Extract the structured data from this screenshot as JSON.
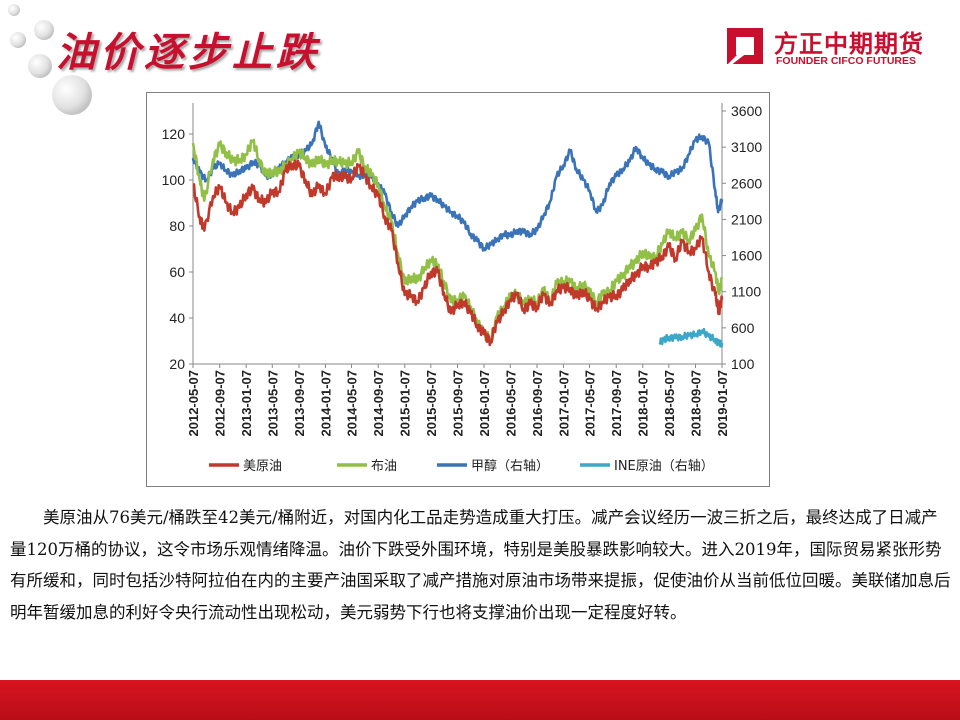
{
  "slide": {
    "title": "油价逐步止跌",
    "paragraph": "美原油从76美元/桶跌至42美元/桶附近，对国内化工品走势造成重大打压。减产会议经历一波三折之后，最终达成了日减产量120万桶的协议，这令市场乐观情绪降温。油价下跌受外围环境，特别是美股暴跌影响较大。进入2019年，国际贸易紧张形势有所缓和，同时包括沙特阿拉伯在内的主要产油国采取了减产措施对原油市场带来提振，促使油价从当前低位回暖。美联储加息后明年暂缓加息的利好令央行流动性出现松动，美元弱势下行也将支撑油价出现一定程度好转。"
  },
  "logo": {
    "cn": "方正中期期货",
    "en": "FOUNDER CIFCO FUTURES",
    "color": "#c8102e"
  },
  "colors": {
    "brand_red": "#c8102e",
    "wti": "#c0392b",
    "brent": "#92c046",
    "methanol": "#3a73b8",
    "ine": "#3ba7c9"
  },
  "chart_data": {
    "type": "line",
    "title": "",
    "left_axis": {
      "range": [
        20,
        130
      ],
      "ticks": [
        20,
        40,
        60,
        80,
        100,
        120
      ]
    },
    "right_axis": {
      "range": [
        100,
        3600
      ],
      "ticks": [
        100,
        600,
        1100,
        1600,
        2100,
        2600,
        3100,
        3600
      ]
    },
    "x_ticks": [
      "2012-05-07",
      "2012-09-07",
      "2013-01-07",
      "2013-05-07",
      "2013-09-07",
      "2014-01-07",
      "2014-05-07",
      "2014-09-07",
      "2015-01-07",
      "2015-05-07",
      "2015-09-07",
      "2016-01-07",
      "2016-05-07",
      "2016-09-07",
      "2017-01-07",
      "2017-05-07",
      "2017-09-07",
      "2018-01-07",
      "2018-05-07",
      "2018-09-07",
      "2019-01-07"
    ],
    "grid": false,
    "legend_position": "bottom",
    "series": [
      {
        "name": "美原油",
        "axis": "left",
        "color": "#c0392b",
        "points": [
          [
            "2012-05-07",
            98
          ],
          [
            "2012-06-07",
            84
          ],
          [
            "2012-06-28",
            78
          ],
          [
            "2012-08-07",
            93
          ],
          [
            "2012-09-07",
            97
          ],
          [
            "2012-10-07",
            90
          ],
          [
            "2012-11-07",
            86
          ],
          [
            "2012-12-07",
            88
          ],
          [
            "2013-01-07",
            94
          ],
          [
            "2013-02-07",
            96
          ],
          [
            "2013-03-07",
            92
          ],
          [
            "2013-04-07",
            90
          ],
          [
            "2013-05-07",
            95
          ],
          [
            "2013-06-07",
            95
          ],
          [
            "2013-07-07",
            104
          ],
          [
            "2013-08-07",
            107
          ],
          [
            "2013-09-07",
            106
          ],
          [
            "2013-10-07",
            100
          ],
          [
            "2013-11-07",
            93
          ],
          [
            "2013-12-07",
            98
          ],
          [
            "2014-01-07",
            94
          ],
          [
            "2014-02-07",
            101
          ],
          [
            "2014-03-07",
            102
          ],
          [
            "2014-04-07",
            101
          ],
          [
            "2014-05-07",
            101
          ],
          [
            "2014-06-07",
            106
          ],
          [
            "2014-07-07",
            102
          ],
          [
            "2014-08-07",
            97
          ],
          [
            "2014-09-07",
            93
          ],
          [
            "2014-10-07",
            84
          ],
          [
            "2014-11-07",
            78
          ],
          [
            "2014-12-07",
            64
          ],
          [
            "2015-01-07",
            50
          ],
          [
            "2015-02-07",
            50
          ],
          [
            "2015-03-07",
            47
          ],
          [
            "2015-04-07",
            53
          ],
          [
            "2015-05-07",
            60
          ],
          [
            "2015-06-07",
            60
          ],
          [
            "2015-07-07",
            51
          ],
          [
            "2015-08-07",
            42
          ],
          [
            "2015-09-07",
            46
          ],
          [
            "2015-10-07",
            47
          ],
          [
            "2015-11-07",
            42
          ],
          [
            "2015-12-07",
            37
          ],
          [
            "2016-01-07",
            33
          ],
          [
            "2016-02-07",
            30
          ],
          [
            "2016-03-07",
            38
          ],
          [
            "2016-04-07",
            43
          ],
          [
            "2016-05-07",
            48
          ],
          [
            "2016-06-07",
            50
          ],
          [
            "2016-07-07",
            44
          ],
          [
            "2016-08-07",
            46
          ],
          [
            "2016-09-07",
            45
          ],
          [
            "2016-10-07",
            50
          ],
          [
            "2016-11-07",
            46
          ],
          [
            "2016-12-07",
            52
          ],
          [
            "2017-01-07",
            53
          ],
          [
            "2017-02-07",
            53
          ],
          [
            "2017-03-07",
            49
          ],
          [
            "2017-04-07",
            52
          ],
          [
            "2017-05-07",
            48
          ],
          [
            "2017-06-07",
            44
          ],
          [
            "2017-07-07",
            47
          ],
          [
            "2017-08-07",
            49
          ],
          [
            "2017-09-07",
            50
          ],
          [
            "2017-10-07",
            52
          ],
          [
            "2017-11-07",
            57
          ],
          [
            "2017-12-07",
            58
          ],
          [
            "2018-01-07",
            63
          ],
          [
            "2018-02-07",
            62
          ],
          [
            "2018-03-07",
            64
          ],
          [
            "2018-04-07",
            67
          ],
          [
            "2018-05-07",
            71
          ],
          [
            "2018-06-07",
            66
          ],
          [
            "2018-07-07",
            73
          ],
          [
            "2018-08-07",
            69
          ],
          [
            "2018-09-07",
            70
          ],
          [
            "2018-10-07",
            75
          ],
          [
            "2018-11-07",
            60
          ],
          [
            "2018-12-07",
            50
          ],
          [
            "2018-12-24",
            43
          ],
          [
            "2019-01-07",
            48
          ]
        ]
      },
      {
        "name": "布油",
        "axis": "left",
        "color": "#92c046",
        "points": [
          [
            "2012-05-07",
            116
          ],
          [
            "2012-06-07",
            100
          ],
          [
            "2012-06-28",
            91
          ],
          [
            "2012-08-07",
            109
          ],
          [
            "2012-09-07",
            115
          ],
          [
            "2012-10-07",
            112
          ],
          [
            "2012-11-07",
            108
          ],
          [
            "2012-12-07",
            109
          ],
          [
            "2013-01-07",
            111
          ],
          [
            "2013-02-07",
            117
          ],
          [
            "2013-03-07",
            109
          ],
          [
            "2013-04-07",
            102
          ],
          [
            "2013-05-07",
            104
          ],
          [
            "2013-06-07",
            103
          ],
          [
            "2013-07-07",
            107
          ],
          [
            "2013-08-07",
            109
          ],
          [
            "2013-09-07",
            112
          ],
          [
            "2013-10-07",
            110
          ],
          [
            "2013-11-07",
            106
          ],
          [
            "2013-12-07",
            110
          ],
          [
            "2014-01-07",
            106
          ],
          [
            "2014-02-07",
            109
          ],
          [
            "2014-03-07",
            108
          ],
          [
            "2014-04-07",
            107
          ],
          [
            "2014-05-07",
            108
          ],
          [
            "2014-06-07",
            112
          ],
          [
            "2014-07-07",
            106
          ],
          [
            "2014-08-07",
            102
          ],
          [
            "2014-09-07",
            98
          ],
          [
            "2014-10-07",
            88
          ],
          [
            "2014-11-07",
            82
          ],
          [
            "2014-12-07",
            68
          ],
          [
            "2015-01-07",
            55
          ],
          [
            "2015-02-07",
            58
          ],
          [
            "2015-03-07",
            56
          ],
          [
            "2015-04-07",
            62
          ],
          [
            "2015-05-07",
            65
          ],
          [
            "2015-06-07",
            63
          ],
          [
            "2015-07-07",
            56
          ],
          [
            "2015-08-07",
            47
          ],
          [
            "2015-09-07",
            48
          ],
          [
            "2015-10-07",
            49
          ],
          [
            "2015-11-07",
            45
          ],
          [
            "2015-12-07",
            38
          ],
          [
            "2016-01-07",
            33
          ],
          [
            "2016-02-07",
            31
          ],
          [
            "2016-03-07",
            40
          ],
          [
            "2016-04-07",
            45
          ],
          [
            "2016-05-07",
            49
          ],
          [
            "2016-06-07",
            51
          ],
          [
            "2016-07-07",
            46
          ],
          [
            "2016-08-07",
            48
          ],
          [
            "2016-09-07",
            47
          ],
          [
            "2016-10-07",
            52
          ],
          [
            "2016-11-07",
            47
          ],
          [
            "2016-12-07",
            55
          ],
          [
            "2017-01-07",
            56
          ],
          [
            "2017-02-07",
            56
          ],
          [
            "2017-03-07",
            52
          ],
          [
            "2017-04-07",
            55
          ],
          [
            "2017-05-07",
            51
          ],
          [
            "2017-06-07",
            47
          ],
          [
            "2017-07-07",
            50
          ],
          [
            "2017-08-07",
            52
          ],
          [
            "2017-09-07",
            56
          ],
          [
            "2017-10-07",
            58
          ],
          [
            "2017-11-07",
            63
          ],
          [
            "2017-12-07",
            64
          ],
          [
            "2018-01-07",
            69
          ],
          [
            "2018-02-07",
            66
          ],
          [
            "2018-03-07",
            67
          ],
          [
            "2018-04-07",
            72
          ],
          [
            "2018-05-07",
            78
          ],
          [
            "2018-06-07",
            75
          ],
          [
            "2018-07-07",
            77
          ],
          [
            "2018-08-07",
            74
          ],
          [
            "2018-09-07",
            78
          ],
          [
            "2018-10-07",
            85
          ],
          [
            "2018-11-07",
            67
          ],
          [
            "2018-12-07",
            60
          ],
          [
            "2018-12-24",
            51
          ],
          [
            "2019-01-07",
            57
          ]
        ]
      },
      {
        "name": "甲醇（右轴）",
        "axis": "right",
        "color": "#3a73b8",
        "points": [
          [
            "2012-05-07",
            2950
          ],
          [
            "2012-06-07",
            2750
          ],
          [
            "2012-07-07",
            2650
          ],
          [
            "2012-08-07",
            2800
          ],
          [
            "2012-09-07",
            2880
          ],
          [
            "2012-10-07",
            2780
          ],
          [
            "2012-11-07",
            2700
          ],
          [
            "2012-12-07",
            2780
          ],
          [
            "2013-01-07",
            2800
          ],
          [
            "2013-02-07",
            2900
          ],
          [
            "2013-03-07",
            2850
          ],
          [
            "2013-04-07",
            2700
          ],
          [
            "2013-05-07",
            2720
          ],
          [
            "2013-06-07",
            2800
          ],
          [
            "2013-07-07",
            2900
          ],
          [
            "2013-08-07",
            2950
          ],
          [
            "2013-09-07",
            3000
          ],
          [
            "2013-10-07",
            3050
          ],
          [
            "2013-11-07",
            3150
          ],
          [
            "2013-12-07",
            3450
          ],
          [
            "2014-01-07",
            3100
          ],
          [
            "2014-02-07",
            2950
          ],
          [
            "2014-03-07",
            2700
          ],
          [
            "2014-04-07",
            2800
          ],
          [
            "2014-05-07",
            2750
          ],
          [
            "2014-06-07",
            2700
          ],
          [
            "2014-07-07",
            2720
          ],
          [
            "2014-08-07",
            2680
          ],
          [
            "2014-09-07",
            2600
          ],
          [
            "2014-10-07",
            2450
          ],
          [
            "2014-11-07",
            2200
          ],
          [
            "2014-12-07",
            2000
          ],
          [
            "2015-01-07",
            2150
          ],
          [
            "2015-02-07",
            2280
          ],
          [
            "2015-03-07",
            2350
          ],
          [
            "2015-04-07",
            2400
          ],
          [
            "2015-05-07",
            2420
          ],
          [
            "2015-06-07",
            2380
          ],
          [
            "2015-07-07",
            2280
          ],
          [
            "2015-08-07",
            2200
          ],
          [
            "2015-09-07",
            2150
          ],
          [
            "2015-10-07",
            2050
          ],
          [
            "2015-11-07",
            1900
          ],
          [
            "2015-12-07",
            1800
          ],
          [
            "2016-01-07",
            1700
          ],
          [
            "2016-02-07",
            1750
          ],
          [
            "2016-03-07",
            1820
          ],
          [
            "2016-04-07",
            1900
          ],
          [
            "2016-05-07",
            1870
          ],
          [
            "2016-06-07",
            1950
          ],
          [
            "2016-07-07",
            1920
          ],
          [
            "2016-08-07",
            1900
          ],
          [
            "2016-09-07",
            1950
          ],
          [
            "2016-10-07",
            2150
          ],
          [
            "2016-11-07",
            2350
          ],
          [
            "2016-12-07",
            2700
          ],
          [
            "2017-01-07",
            2850
          ],
          [
            "2017-02-07",
            3050
          ],
          [
            "2017-03-07",
            2800
          ],
          [
            "2017-04-07",
            2650
          ],
          [
            "2017-05-07",
            2500
          ],
          [
            "2017-06-07",
            2200
          ],
          [
            "2017-07-07",
            2300
          ],
          [
            "2017-08-07",
            2600
          ],
          [
            "2017-09-07",
            2700
          ],
          [
            "2017-10-07",
            2800
          ],
          [
            "2017-11-07",
            2900
          ],
          [
            "2017-12-07",
            3100
          ],
          [
            "2018-01-07",
            2950
          ],
          [
            "2018-02-07",
            2850
          ],
          [
            "2018-03-07",
            2800
          ],
          [
            "2018-04-07",
            2750
          ],
          [
            "2018-05-07",
            2700
          ],
          [
            "2018-06-07",
            2750
          ],
          [
            "2018-07-07",
            2800
          ],
          [
            "2018-08-07",
            3000
          ],
          [
            "2018-09-07",
            3200
          ],
          [
            "2018-10-07",
            3250
          ],
          [
            "2018-11-07",
            3150
          ],
          [
            "2018-12-07",
            2500
          ],
          [
            "2018-12-20",
            2200
          ],
          [
            "2019-01-07",
            2380
          ]
        ]
      },
      {
        "name": "INE原油（右轴）",
        "axis": "right",
        "color": "#3ba7c9",
        "points": [
          [
            "2018-03-26",
            400
          ],
          [
            "2018-04-15",
            430
          ],
          [
            "2018-05-07",
            470
          ],
          [
            "2018-06-07",
            460
          ],
          [
            "2018-07-07",
            480
          ],
          [
            "2018-08-07",
            490
          ],
          [
            "2018-09-07",
            510
          ],
          [
            "2018-10-07",
            560
          ],
          [
            "2018-11-07",
            480
          ],
          [
            "2018-12-07",
            440
          ],
          [
            "2018-12-24",
            380
          ],
          [
            "2019-01-07",
            390
          ]
        ]
      }
    ]
  }
}
